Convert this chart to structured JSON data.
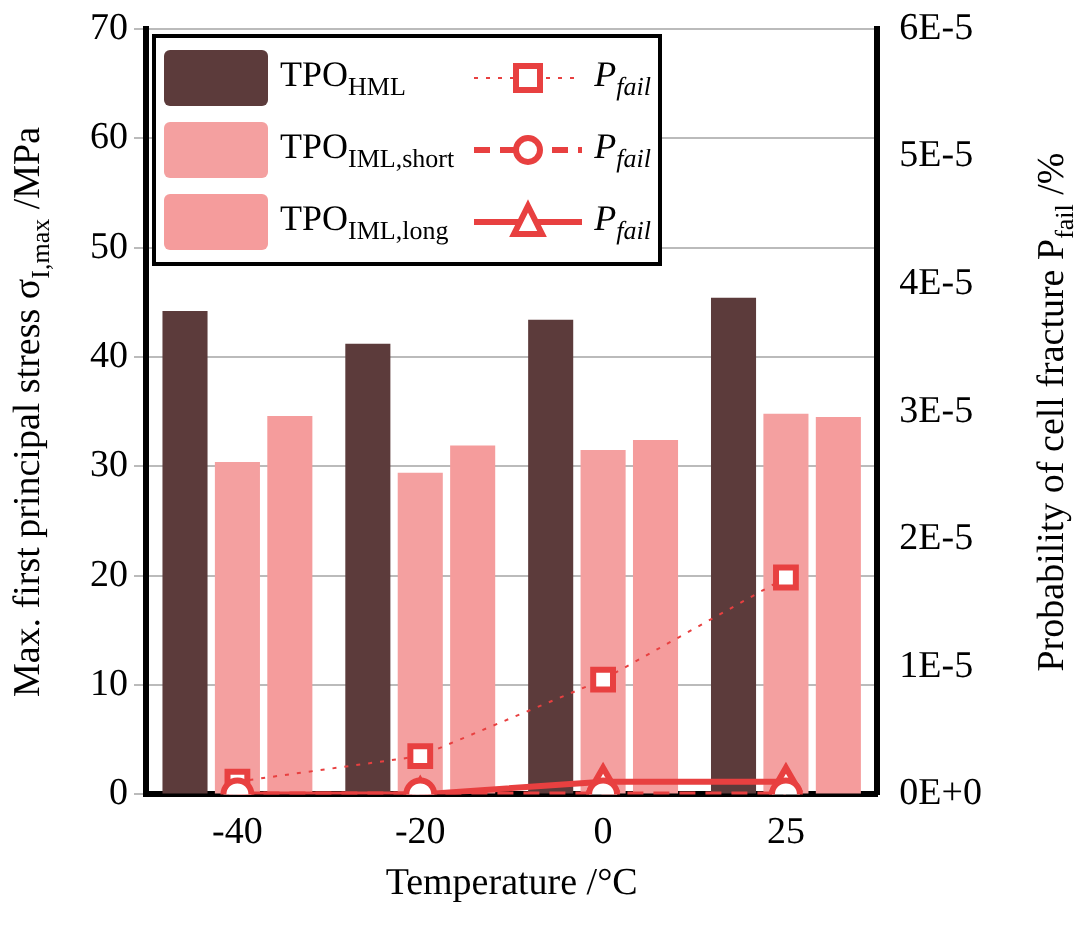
{
  "chart_data": {
    "type": "bar",
    "xlabel": "Temperature /°C",
    "ylabel": "Max. first principal stress σ$_{I,max}$ /MPa",
    "y2label": "Probability of cell fracture P$_{fail}$ /%",
    "categories": [
      "-40",
      "-20",
      "0",
      "25"
    ],
    "series": [
      {
        "name": "TPO$_{HML}$",
        "color": "#5c3b3b",
        "values": [
          44.2,
          41.2,
          43.4,
          45.4
        ]
      },
      {
        "name": "TPO$_{IML,short}$",
        "color": "#f4a0a0",
        "values": [
          30.4,
          29.4,
          31.5,
          34.8
        ]
      },
      {
        "name": "TPO$_{IML,long}$",
        "color": "#f59c9c",
        "values": [
          34.6,
          31.9,
          32.4,
          34.5
        ]
      },
      {
        "name": "P$_{fail}$",
        "type": "line",
        "axis": "y2",
        "color": "#e84040",
        "marker": "square",
        "line_style": "dotted",
        "values": [
          1e-06,
          3e-06,
          9e-06,
          1.7e-05
        ]
      },
      {
        "name": "P$_{fail}$",
        "type": "line",
        "axis": "y2",
        "color": "#e84040",
        "marker": "circle",
        "line_style": "dashed",
        "values": [
          0,
          0,
          0,
          0
        ]
      },
      {
        "name": "P$_{fail}$",
        "type": "line",
        "axis": "y2",
        "color": "#e84040",
        "marker": "triangle",
        "line_style": "solid",
        "values": [
          0,
          0,
          1e-06,
          1e-06
        ]
      }
    ],
    "ylim": [
      0,
      70
    ],
    "yticks": [
      0,
      10,
      20,
      30,
      40,
      50,
      60,
      70
    ],
    "y2lim": [
      0,
      6e-05
    ],
    "y2ticks": [
      {
        "value": 0,
        "label": "0E+0"
      },
      {
        "value": 1e-05,
        "label": "1E-5"
      },
      {
        "value": 2e-05,
        "label": "2E-5"
      },
      {
        "value": 3e-05,
        "label": "3E-5"
      },
      {
        "value": 4e-05,
        "label": "4E-5"
      },
      {
        "value": 5e-05,
        "label": "5E-5"
      },
      {
        "value": 6e-05,
        "label": "6E-5"
      }
    ],
    "grid": "y",
    "legend": "top left"
  }
}
